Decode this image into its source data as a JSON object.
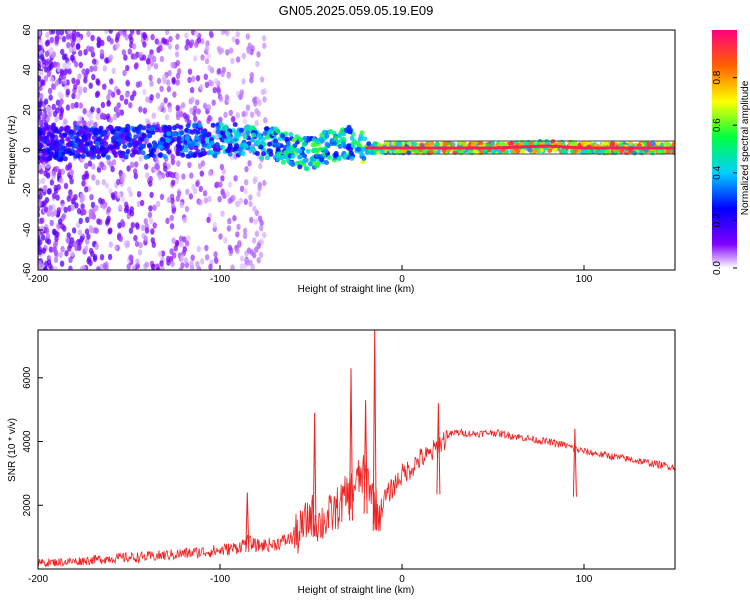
{
  "title": "GN05.2025.059.05.19.E09",
  "chart_data": [
    {
      "type": "heatmap",
      "xlabel": "Height of straight line (km)",
      "ylabel": "Frequency (Hz)",
      "xlim": [
        -200,
        150
      ],
      "ylim": [
        -60,
        60
      ],
      "xticks": [
        -200,
        -100,
        0,
        100
      ],
      "yticks": [
        -60,
        -40,
        -20,
        0,
        20,
        40,
        60
      ],
      "colorbar": {
        "label": "Normalized spectral amplitude",
        "range": [
          0,
          1
        ],
        "ticks": [
          0.0,
          0.2,
          0.4,
          0.6,
          0.8
        ]
      },
      "ridge": {
        "x": [
          -200,
          -150,
          -110,
          -90,
          -70,
          -60,
          -50,
          -40,
          -30,
          -20,
          0,
          20,
          50,
          80,
          100,
          150
        ],
        "y": [
          3,
          4,
          5,
          5,
          3,
          0,
          -2,
          2,
          4,
          1,
          1,
          1,
          1,
          2,
          1,
          1
        ],
        "amplitude": [
          0.3,
          0.35,
          0.4,
          0.5,
          0.55,
          0.6,
          0.6,
          0.6,
          0.55,
          0.7,
          0.8,
          0.95,
          0.95,
          0.95,
          0.95,
          0.95
        ]
      },
      "grid": false
    },
    {
      "type": "line",
      "xlabel": "Height of straight line (km)",
      "ylabel": "SNR (10 * v/v)",
      "xlim": [
        -200,
        150
      ],
      "ylim": [
        0,
        7500
      ],
      "xticks": [
        -200,
        -100,
        0,
        100
      ],
      "yticks": [
        2000,
        4000,
        6000
      ],
      "color": "#ee2222",
      "series": [
        {
          "x": [
            -200,
            -180,
            -160,
            -140,
            -120,
            -100,
            -90,
            -85,
            -80,
            -70,
            -60,
            -55,
            -50,
            -45,
            -40,
            -35,
            -30,
            -27,
            -25,
            -22,
            -20,
            -18,
            -15,
            -12,
            -10,
            -5,
            0,
            5,
            10,
            15,
            20,
            25,
            30,
            40,
            50,
            60,
            70,
            80,
            90,
            94,
            100,
            110,
            120,
            130,
            140,
            150
          ],
          "y": [
            200,
            250,
            350,
            400,
            500,
            600,
            700,
            900,
            750,
            800,
            1000,
            1300,
            1800,
            1500,
            1700,
            2000,
            2400,
            2600,
            2800,
            3000,
            2900,
            2800,
            2000,
            1800,
            2200,
            2600,
            3000,
            3200,
            3500,
            3600,
            3900,
            4200,
            4300,
            4250,
            4300,
            4200,
            4100,
            4000,
            3900,
            3800,
            3700,
            3600,
            3500,
            3400,
            3300,
            3200
          ]
        }
      ],
      "peaks": [
        {
          "x": -85,
          "y": 2400
        },
        {
          "x": -48,
          "y": 4900
        },
        {
          "x": -28,
          "y": 6300
        },
        {
          "x": -20,
          "y": 5300
        },
        {
          "x": -15,
          "y": 7500
        },
        {
          "x": 20,
          "y": 5200
        },
        {
          "x": 95,
          "y": 4400
        }
      ],
      "grid": false
    }
  ]
}
